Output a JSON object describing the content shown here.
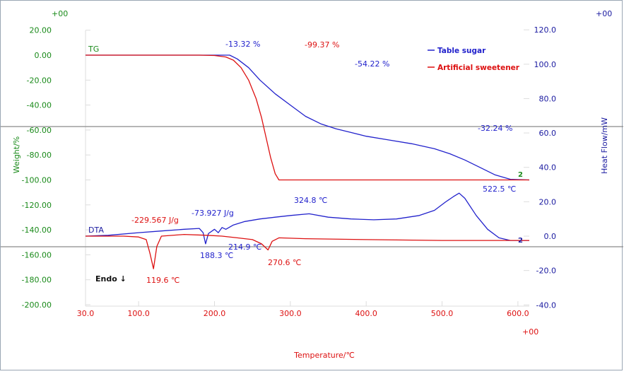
{
  "chart_data": {
    "type": "line",
    "xlabel": "Temperature/℃",
    "x_ticks": [
      "30.0",
      "100.0",
      "200.0",
      "300.0",
      "400.0",
      "500.0",
      "600.0"
    ],
    "x_tick_values": [
      30,
      100,
      200,
      300,
      400,
      500,
      600
    ],
    "xlim": [
      30,
      615
    ],
    "y_left": {
      "label": "Weight/%",
      "ticks": [
        "20.00",
        "0.00",
        "-20.00",
        "-40.00",
        "-60.00",
        "-80.00",
        "-100.00",
        "-120.00",
        "-140.00",
        "-160.00",
        "-180.00",
        "-200.00"
      ],
      "tick_values": [
        20,
        0,
        -20,
        -40,
        -60,
        -80,
        -100,
        -120,
        -140,
        -160,
        -180,
        -200
      ],
      "color": "#1a8a1a"
    },
    "y_right": {
      "label": "Heat Flow/mW",
      "ticks": [
        "120.0",
        "100.0",
        "80.0",
        "60.0",
        "40.0",
        "20.0",
        "0.0",
        "-20.0",
        "-40.0"
      ],
      "tick_values": [
        120,
        100,
        80,
        60,
        40,
        20,
        0,
        -20,
        -40
      ],
      "color": "#1a1aa0"
    },
    "corner_labels": {
      "top_left": "+00",
      "top_right": "+00",
      "bottom_right": "+00"
    },
    "curve_labels": {
      "tg": "TG",
      "dta": "DTA",
      "endo": "Endo ↓"
    },
    "legend": [
      {
        "name": "Table sugar",
        "color": "#2222cc"
      },
      {
        "name": "Artificial sweetener",
        "color": "#dd1111"
      }
    ],
    "series": [
      {
        "id": "tg-sugar",
        "color": "#2222cc",
        "axis": "left",
        "x": [
          30,
          200,
          220,
          230,
          245,
          260,
          280,
          300,
          320,
          340,
          360,
          380,
          400,
          430,
          460,
          490,
          510,
          530,
          550,
          570,
          590,
          615
        ],
        "y": [
          0,
          0,
          0,
          -3,
          -10,
          -20,
          -31,
          -40,
          -49,
          -55,
          -59,
          -62,
          -65,
          -68,
          -71,
          -75,
          -79,
          -84,
          -90,
          -96,
          -99.5,
          -100
        ]
      },
      {
        "id": "tg-sweetener",
        "color": "#dd1111",
        "axis": "left",
        "x": [
          30,
          180,
          200,
          215,
          225,
          235,
          245,
          255,
          262,
          268,
          274,
          280,
          285,
          300,
          615
        ],
        "y": [
          0,
          0,
          -0.3,
          -1.5,
          -4,
          -10,
          -20,
          -35,
          -50,
          -66,
          -82,
          -95,
          -100,
          -100,
          -100
        ]
      },
      {
        "id": "dta-sugar",
        "color": "#2222cc",
        "axis": "right",
        "x": [
          30,
          60,
          100,
          130,
          160,
          180,
          185,
          188.3,
          192,
          200,
          205,
          210,
          215,
          225,
          240,
          260,
          280,
          300,
          324.8,
          350,
          380,
          410,
          440,
          470,
          490,
          505,
          515,
          522.5,
          530,
          545,
          560,
          575,
          590,
          615
        ],
        "y": [
          0,
          0.5,
          2,
          3,
          4,
          4.5,
          2,
          -4.5,
          1.5,
          4,
          2,
          5,
          4,
          6.5,
          8.5,
          10,
          11,
          12,
          13,
          11,
          10,
          9.5,
          10,
          12,
          15,
          20,
          23,
          25,
          22,
          12,
          4,
          -1,
          -2.5,
          -2.5
        ]
      },
      {
        "id": "dta-sweetener",
        "color": "#dd1111",
        "axis": "right",
        "x": [
          30,
          80,
          100,
          110,
          115,
          119.6,
          124,
          130,
          160,
          190,
          210,
          230,
          250,
          262,
          270.6,
          276,
          285,
          320,
          400,
          500,
          560,
          615
        ],
        "y": [
          0,
          0,
          -0.5,
          -2,
          -10,
          -19,
          -6,
          0,
          1,
          0.5,
          0,
          -1,
          -2,
          -4.5,
          -8,
          -3,
          -1,
          -1.5,
          -2,
          -2.5,
          -2.5,
          -2.5
        ]
      }
    ],
    "annotations": [
      {
        "text": "-13.32 %",
        "color": "#2222cc"
      },
      {
        "text": "-99.37 %",
        "color": "#dd1111"
      },
      {
        "text": "-54.22 %",
        "color": "#2222cc"
      },
      {
        "text": "-32.24 %",
        "color": "#2222cc"
      },
      {
        "text": "-229.567 J/g",
        "color": "#dd1111"
      },
      {
        "text": "-73.927 J/g",
        "color": "#2222cc"
      },
      {
        "text": "324.8 ℃",
        "color": "#2222cc"
      },
      {
        "text": "522.5 ℃",
        "color": "#2222cc"
      },
      {
        "text": "188.3 ℃",
        "color": "#2222cc"
      },
      {
        "text": "214.9 ℃",
        "color": "#2222cc"
      },
      {
        "text": "270.6 ℃",
        "color": "#dd1111"
      },
      {
        "text": "119.6 ℃",
        "color": "#dd1111"
      }
    ],
    "end_markers": [
      "2",
      "2"
    ],
    "grid": false,
    "legend_position": "top-right"
  }
}
